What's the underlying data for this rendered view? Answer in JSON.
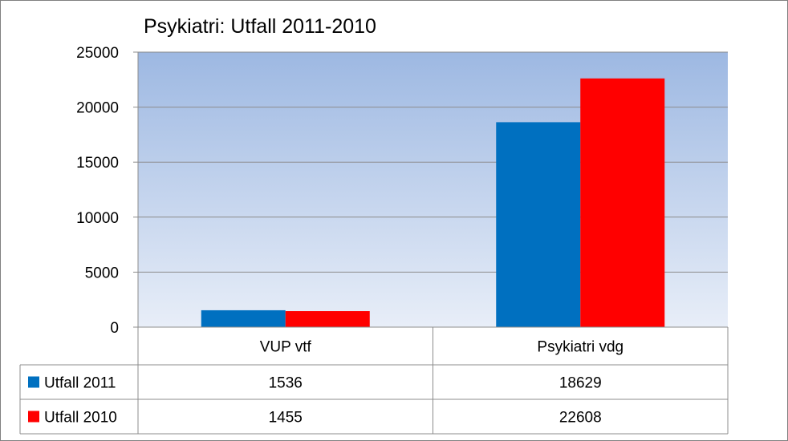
{
  "chart_data": {
    "type": "bar",
    "title": "Psykiatri: Utfall 2011-2010",
    "categories": [
      "VUP vtf",
      "Psykiatri vdg"
    ],
    "series": [
      {
        "name": "Utfall 2011",
        "values": [
          1536,
          18629
        ],
        "color": "#0070C0"
      },
      {
        "name": "Utfall 2010",
        "values": [
          1455,
          22608
        ],
        "color": "#FF0000"
      }
    ],
    "ylim": [
      0,
      25000
    ],
    "yticks": [
      "25000",
      "20000",
      "15000",
      "10000",
      "5000",
      "0"
    ],
    "grid": true,
    "legend": "data-table",
    "plot_background": {
      "top": "#9DB8E2",
      "bottom": "#E8EEF8"
    },
    "table": {
      "rows": [
        {
          "label": "Utfall 2011",
          "cells": [
            "1536",
            "18629"
          ]
        },
        {
          "label": "Utfall 2010",
          "cells": [
            "1455",
            "22608"
          ]
        }
      ]
    }
  }
}
